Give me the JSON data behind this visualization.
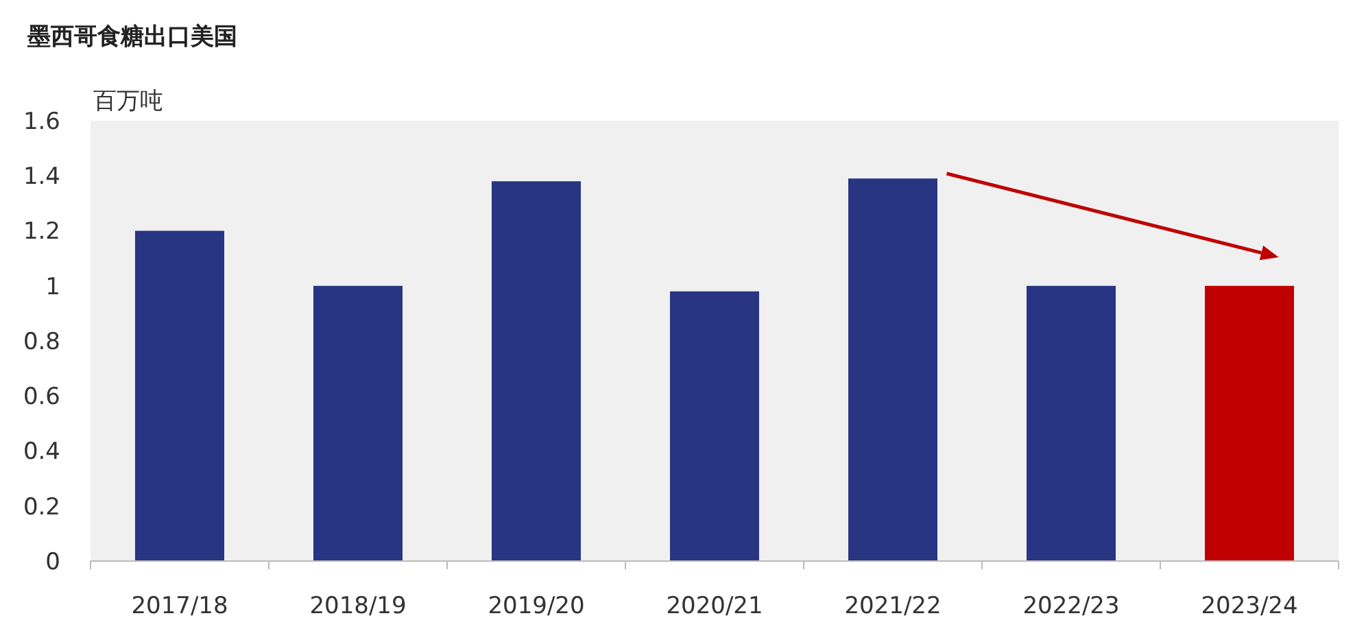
{
  "chart_data": {
    "type": "bar",
    "title": "墨西哥食糖出口美国",
    "ylabel": "百万吨",
    "categories": [
      "2017/18",
      "2018/19",
      "2019/20",
      "2020/21",
      "2021/22",
      "2022/23",
      "2023/24"
    ],
    "values": [
      1.2,
      1.0,
      1.38,
      0.98,
      1.39,
      1.0,
      1.0
    ],
    "colors": [
      "#283583",
      "#283583",
      "#283583",
      "#283583",
      "#283583",
      "#283583",
      "#c00000"
    ],
    "ylim": [
      0,
      1.6
    ],
    "yticks": [
      0,
      {
        "value": 0.2,
        "label": "0.2"
      },
      {
        "value": 0.4,
        "label": "0.4"
      },
      {
        "value": 0.6,
        "label": "0.6"
      },
      {
        "value": 0.8,
        "label": "0.8"
      },
      1,
      {
        "value": 1.2,
        "label": "1.2"
      },
      {
        "value": 1.4,
        "label": "1.4"
      },
      {
        "value": 1.6,
        "label": "1.6"
      }
    ],
    "grid": false
  }
}
